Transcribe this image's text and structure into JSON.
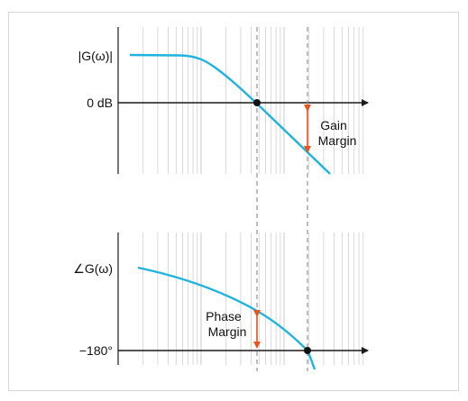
{
  "magnitude_plot": {
    "y_label": "|G(ω)|",
    "reference_label": "0 dB",
    "annotation_line1": "Gain",
    "annotation_line2": "Margin"
  },
  "phase_plot": {
    "y_label": "∠G(ω)",
    "reference_label": "−180°",
    "annotation_line1": "Phase",
    "annotation_line2": "Margin"
  },
  "colors": {
    "curve": "#1fb3df",
    "margin_arrow": "#e8541c",
    "grid": "#cfcfcf",
    "axis": "#1a1a1a",
    "marker": "#111111",
    "crossover_line": "#8a8a8a"
  }
}
